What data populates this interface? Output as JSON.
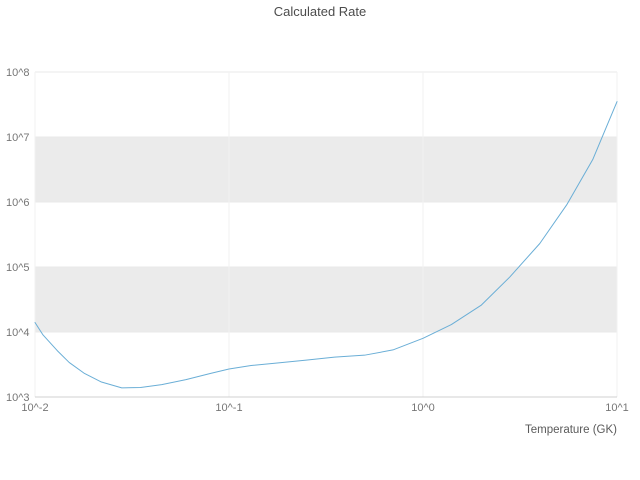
{
  "title": "Calculated Rate",
  "chart_data": {
    "type": "line",
    "title": "Calculated Rate",
    "xlabel": "Temperature (GK)",
    "ylabel": "",
    "xscale": "log",
    "yscale": "log",
    "xlim": [
      0.01,
      10
    ],
    "ylim": [
      1000,
      100000000
    ],
    "grid": true,
    "legend": "none",
    "x_tick_values": [
      0.01,
      0.1,
      1,
      10
    ],
    "x_tick_labels": [
      "10^-2",
      "10^-1",
      "10^0",
      "10^1"
    ],
    "y_tick_values": [
      1000,
      10000,
      100000,
      1000000,
      10000000,
      100000000
    ],
    "y_tick_labels": [
      "10^3",
      "10^4",
      "10^5",
      "10^6",
      "10^7",
      "10^8"
    ],
    "bands": [
      [
        10000,
        100000
      ],
      [
        1000000,
        10000000
      ]
    ],
    "band_color": "#ebebeb",
    "gridline_color": "#e8e8e8",
    "axis_line_color": "#d0d0d0",
    "series": [
      {
        "name": "calculated-rate",
        "color": "#6aaed6",
        "x": [
          0.01,
          0.011,
          0.013,
          0.015,
          0.018,
          0.022,
          0.028,
          0.035,
          0.045,
          0.06,
          0.08,
          0.1,
          0.13,
          0.18,
          0.25,
          0.35,
          0.5,
          0.7,
          1.0,
          1.4,
          2.0,
          2.8,
          4.0,
          5.5,
          7.5,
          10.0
        ],
        "y": [
          14000,
          9000,
          5200,
          3400,
          2300,
          1700,
          1380,
          1400,
          1550,
          1850,
          2300,
          2700,
          3050,
          3350,
          3700,
          4100,
          4400,
          5300,
          8000,
          13000,
          26000,
          70000,
          230000,
          900000,
          4500000,
          35000000
        ]
      }
    ]
  }
}
